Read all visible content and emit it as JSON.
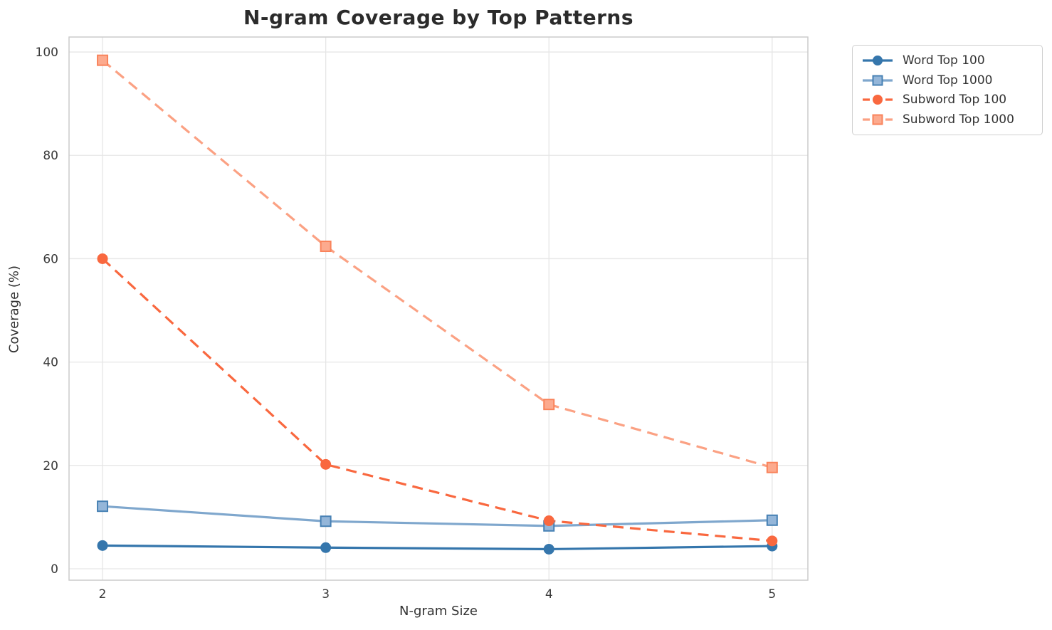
{
  "chart_data": {
    "type": "line",
    "title": "N-gram Coverage by Top Patterns",
    "xlabel": "N-gram Size",
    "ylabel": "Coverage (%)",
    "x": [
      2,
      3,
      4,
      5
    ],
    "xticks": [
      "2",
      "3",
      "4",
      "5"
    ],
    "yticks": [
      0,
      20,
      40,
      60,
      80,
      100
    ],
    "xlim": [
      1.85,
      5.16
    ],
    "ylim": [
      -2.2,
      102.9
    ],
    "grid": true,
    "grid_color": "#e6e6e6",
    "spine_color": "#cccccc",
    "tick_label_color": "#3a3a3a",
    "legend_position": "outside-upper-right",
    "series": [
      {
        "name": "Word Top 100",
        "values": [
          4.5,
          4.1,
          3.8,
          4.4
        ],
        "color": "#3576ac",
        "marker": "circle",
        "marker_fill": "#3576ac",
        "marker_edge": "#3576ac",
        "dash": false
      },
      {
        "name": "Word Top 1000",
        "values": [
          12.1,
          9.2,
          8.3,
          9.4
        ],
        "color": "#7fa7cd",
        "marker": "square",
        "marker_fill": "#94b6d9",
        "marker_edge": "#4781b4",
        "dash": false
      },
      {
        "name": "Subword Top 100",
        "values": [
          60.0,
          20.2,
          9.3,
          5.4
        ],
        "color": "#f9683f",
        "marker": "circle",
        "marker_fill": "#f9683f",
        "marker_edge": "#f9683f",
        "dash": true
      },
      {
        "name": "Subword Top 1000",
        "values": [
          98.4,
          62.4,
          31.8,
          19.6
        ],
        "color": "#fba183",
        "marker": "square",
        "marker_fill": "#fcaa8e",
        "marker_edge": "#f9835b",
        "dash": true
      }
    ]
  }
}
